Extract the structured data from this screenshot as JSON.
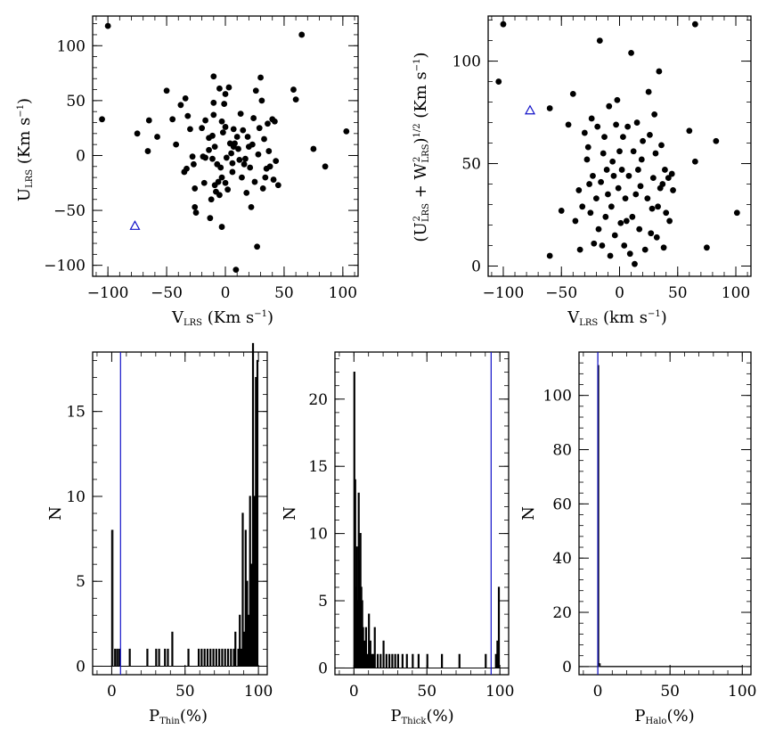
{
  "colors": {
    "ink": "#000000",
    "highlight": "#1010c8"
  },
  "chart_data": [
    {
      "id": "scatter-u-v",
      "type": "scatter",
      "xlabel": "V",
      "xlabel_sub": "LRS",
      "xlabel_units": " (Km s",
      "ylabel": "U",
      "ylabel_sub": "LRS",
      "ylabel_units": " (Km s",
      "exponent": "−1",
      "close_paren": ")",
      "xlim": [
        -113,
        113
      ],
      "ylim": [
        -110,
        127
      ],
      "xticks": [
        -100,
        -50,
        0,
        50,
        100
      ],
      "yticks": [
        -100,
        -50,
        0,
        50,
        100
      ],
      "xtick_labels": [
        "−100",
        "−50",
        "0",
        "50",
        "100"
      ],
      "ytick_labels": [
        "−100",
        "−50",
        "0",
        "50",
        "100"
      ],
      "points": [
        [
          -100,
          118
        ],
        [
          -105,
          33
        ],
        [
          -75,
          20
        ],
        [
          -65,
          32
        ],
        [
          -66,
          4
        ],
        [
          -58,
          17
        ],
        [
          -50,
          59
        ],
        [
          -45,
          33
        ],
        [
          -42,
          10
        ],
        [
          -38,
          46
        ],
        [
          -34,
          52
        ],
        [
          -35,
          -15
        ],
        [
          -33,
          -12
        ],
        [
          -32,
          36
        ],
        [
          -30,
          24
        ],
        [
          -28,
          -1
        ],
        [
          -27,
          -8
        ],
        [
          -26,
          -30
        ],
        [
          -26,
          -47
        ],
        [
          -25,
          -52
        ],
        [
          -20,
          25
        ],
        [
          -19,
          -1
        ],
        [
          -18,
          -25
        ],
        [
          -17,
          32
        ],
        [
          -17,
          -2
        ],
        [
          -14,
          16
        ],
        [
          -14,
          5
        ],
        [
          -13,
          -57
        ],
        [
          -12,
          -40
        ],
        [
          -11,
          18
        ],
        [
          -11,
          -3
        ],
        [
          -10,
          72
        ],
        [
          -10,
          48
        ],
        [
          -10,
          37
        ],
        [
          -9,
          8
        ],
        [
          -9,
          -27
        ],
        [
          -8,
          -33
        ],
        [
          -7,
          -8
        ],
        [
          -6,
          -24
        ],
        [
          -5,
          -36
        ],
        [
          -5,
          61
        ],
        [
          -4,
          -11
        ],
        [
          -3,
          31
        ],
        [
          -3,
          -20
        ],
        [
          -3,
          -65
        ],
        [
          -2,
          21
        ],
        [
          -1,
          47
        ],
        [
          0,
          56
        ],
        [
          0,
          26
        ],
        [
          0,
          -25
        ],
        [
          1,
          -2
        ],
        [
          2,
          -31
        ],
        [
          3,
          62
        ],
        [
          4,
          11
        ],
        [
          5,
          2
        ],
        [
          6,
          -15
        ],
        [
          6,
          -7
        ],
        [
          7,
          8
        ],
        [
          7,
          24
        ],
        [
          8,
          11
        ],
        [
          9,
          -104
        ],
        [
          10,
          17
        ],
        [
          11,
          6
        ],
        [
          12,
          -4
        ],
        [
          13,
          38
        ],
        [
          14,
          -20
        ],
        [
          15,
          23
        ],
        [
          16,
          -8
        ],
        [
          17,
          -3
        ],
        [
          18,
          -34
        ],
        [
          19,
          17
        ],
        [
          20,
          8
        ],
        [
          21,
          -11
        ],
        [
          22,
          -47
        ],
        [
          23,
          10
        ],
        [
          24,
          34
        ],
        [
          25,
          -24
        ],
        [
          26,
          59
        ],
        [
          27,
          -83
        ],
        [
          28,
          1
        ],
        [
          29,
          25
        ],
        [
          30,
          71
        ],
        [
          31,
          50
        ],
        [
          32,
          -30
        ],
        [
          33,
          15
        ],
        [
          34,
          -20
        ],
        [
          35,
          -12
        ],
        [
          36,
          29
        ],
        [
          37,
          4
        ],
        [
          38,
          -10
        ],
        [
          40,
          33
        ],
        [
          41,
          -22
        ],
        [
          42,
          31
        ],
        [
          43,
          -5
        ],
        [
          45,
          -27
        ],
        [
          58,
          60
        ],
        [
          60,
          51
        ],
        [
          65,
          110
        ],
        [
          75,
          6
        ],
        [
          85,
          -10
        ],
        [
          103,
          22
        ]
      ],
      "highlight_point": [
        -77,
        -64
      ]
    },
    {
      "id": "scatter-uw-v",
      "type": "scatter",
      "xlabel": "V",
      "xlabel_sub": "LRS",
      "xlabel_units": " (km s",
      "ylabel_prefix": "(U",
      "ylabel_plus": " + W",
      "ylabel_sup2": "2",
      "ylabel_sub": "LRS",
      "ylabel_close": ")",
      "ylabel_exp_half": "1/2",
      "ylabel_units": " (Km s",
      "exponent": "−1",
      "close_paren": ")",
      "xlim": [
        -113,
        113
      ],
      "ylim": [
        -5,
        122
      ],
      "xticks": [
        -100,
        -50,
        0,
        50,
        100
      ],
      "yticks": [
        0,
        50,
        100
      ],
      "xtick_labels": [
        "−100",
        "−50",
        "0",
        "50",
        "100"
      ],
      "ytick_labels": [
        "0",
        "50",
        "100"
      ],
      "points": [
        [
          -100,
          118
        ],
        [
          -104,
          90
        ],
        [
          -60,
          77
        ],
        [
          -60,
          5
        ],
        [
          -50,
          27
        ],
        [
          -44,
          69
        ],
        [
          -40,
          84
        ],
        [
          -38,
          22
        ],
        [
          -35,
          37
        ],
        [
          -34,
          8
        ],
        [
          -32,
          29
        ],
        [
          -30,
          65
        ],
        [
          -28,
          52
        ],
        [
          -27,
          58
        ],
        [
          -26,
          40
        ],
        [
          -25,
          26
        ],
        [
          -24,
          72
        ],
        [
          -23,
          44
        ],
        [
          -22,
          11
        ],
        [
          -20,
          33
        ],
        [
          -19,
          68
        ],
        [
          -18,
          18
        ],
        [
          -17,
          110
        ],
        [
          -16,
          41
        ],
        [
          -15,
          10
        ],
        [
          -14,
          55
        ],
        [
          -13,
          63
        ],
        [
          -12,
          24
        ],
        [
          -11,
          47
        ],
        [
          -10,
          35
        ],
        [
          -9,
          78
        ],
        [
          -8,
          5
        ],
        [
          -7,
          29
        ],
        [
          -6,
          51
        ],
        [
          -5,
          44
        ],
        [
          -4,
          15
        ],
        [
          -3,
          69
        ],
        [
          -2,
          81
        ],
        [
          -1,
          38
        ],
        [
          0,
          56
        ],
        [
          1,
          21
        ],
        [
          2,
          47
        ],
        [
          3,
          63
        ],
        [
          4,
          10
        ],
        [
          5,
          33
        ],
        [
          6,
          22
        ],
        [
          7,
          68
        ],
        [
          8,
          44
        ],
        [
          9,
          6
        ],
        [
          10,
          104
        ],
        [
          11,
          24
        ],
        [
          12,
          56
        ],
        [
          13,
          1
        ],
        [
          14,
          35
        ],
        [
          15,
          70
        ],
        [
          16,
          47
        ],
        [
          17,
          18
        ],
        [
          18,
          39
        ],
        [
          19,
          52
        ],
        [
          20,
          61
        ],
        [
          22,
          8
        ],
        [
          24,
          33
        ],
        [
          25,
          85
        ],
        [
          26,
          64
        ],
        [
          27,
          16
        ],
        [
          28,
          28
        ],
        [
          29,
          43
        ],
        [
          30,
          74
        ],
        [
          31,
          55
        ],
        [
          32,
          14
        ],
        [
          33,
          29
        ],
        [
          34,
          95
        ],
        [
          35,
          38
        ],
        [
          36,
          59
        ],
        [
          37,
          40
        ],
        [
          38,
          9
        ],
        [
          39,
          47
        ],
        [
          40,
          26
        ],
        [
          42,
          43
        ],
        [
          43,
          22
        ],
        [
          45,
          45
        ],
        [
          46,
          37
        ],
        [
          60,
          66
        ],
        [
          65,
          51
        ],
        [
          65,
          118
        ],
        [
          75,
          9
        ],
        [
          83,
          61
        ],
        [
          101,
          26
        ]
      ],
      "highlight_point": [
        -77,
        76
      ]
    },
    {
      "id": "hist-thin",
      "type": "bar",
      "xlabel": "P",
      "xlabel_sub": "Thin",
      "xlabel_units": "(%)",
      "ylabel": "N",
      "xlim": [
        -13,
        106
      ],
      "ylim": [
        -0.5,
        18.5
      ],
      "xticks": [
        0,
        50,
        100
      ],
      "yticks": [
        0,
        5,
        10,
        15
      ],
      "xtick_labels": [
        "0",
        "50",
        "100"
      ],
      "ytick_labels": [
        "0",
        "5",
        "10",
        "15"
      ],
      "bins": [
        [
          0,
          0.8,
          8
        ],
        [
          2,
          2.6,
          1
        ],
        [
          3.5,
          4.1,
          1
        ],
        [
          5,
          5.6,
          1
        ],
        [
          12,
          12.6,
          1
        ],
        [
          24,
          24.6,
          1
        ],
        [
          30,
          30.6,
          1
        ],
        [
          32,
          32.6,
          1
        ],
        [
          36,
          36.6,
          1
        ],
        [
          38,
          38.6,
          1
        ],
        [
          41,
          41.6,
          2
        ],
        [
          52,
          52.6,
          1
        ],
        [
          59,
          59.6,
          1
        ],
        [
          61,
          61.6,
          1
        ],
        [
          63,
          63.6,
          1
        ],
        [
          65,
          65.6,
          1
        ],
        [
          67,
          67.6,
          1
        ],
        [
          69,
          69.6,
          1
        ],
        [
          71,
          71.6,
          1
        ],
        [
          73,
          73.6,
          1
        ],
        [
          75,
          75.6,
          1
        ],
        [
          77,
          77.6,
          1
        ],
        [
          79,
          79.6,
          1
        ],
        [
          81,
          81.6,
          1
        ],
        [
          83,
          83.6,
          1
        ],
        [
          84,
          84.6,
          2
        ],
        [
          86,
          86.6,
          1
        ],
        [
          87,
          87.6,
          3
        ],
        [
          88,
          88.6,
          1
        ],
        [
          89,
          89.6,
          9
        ],
        [
          90,
          90.6,
          2
        ],
        [
          91,
          91.6,
          8
        ],
        [
          92,
          92.6,
          5
        ],
        [
          93,
          93.6,
          3
        ],
        [
          94,
          94.6,
          10
        ],
        [
          95,
          95.6,
          6
        ],
        [
          96,
          96.6,
          19
        ],
        [
          97,
          97.6,
          10
        ],
        [
          98,
          98.6,
          17
        ],
        [
          99,
          99.6,
          18
        ]
      ],
      "highlight_x": 6
    },
    {
      "id": "hist-thick",
      "type": "bar",
      "xlabel": "P",
      "xlabel_sub": "Thick",
      "xlabel_units": "(%)",
      "ylabel": "N",
      "xlim": [
        -13,
        106
      ],
      "ylim": [
        -0.5,
        23.5
      ],
      "xticks": [
        0,
        50,
        100
      ],
      "yticks": [
        0,
        5,
        10,
        15,
        20
      ],
      "xtick_labels": [
        "0",
        "50",
        "100"
      ],
      "ytick_labels": [
        "0",
        "5",
        "10",
        "15",
        "20"
      ],
      "bins": [
        [
          0,
          0.6,
          22
        ],
        [
          0.6,
          1.2,
          14
        ],
        [
          1.2,
          1.8,
          6
        ],
        [
          1.8,
          2.4,
          9
        ],
        [
          2.4,
          3,
          5
        ],
        [
          3,
          3.6,
          13
        ],
        [
          3.6,
          4.2,
          8
        ],
        [
          4.2,
          4.8,
          10
        ],
        [
          4.8,
          5.4,
          6
        ],
        [
          5.4,
          6,
          5
        ],
        [
          6,
          6.6,
          3
        ],
        [
          7,
          7.6,
          2
        ],
        [
          8,
          8.6,
          3
        ],
        [
          9,
          9.6,
          1
        ],
        [
          10,
          10.6,
          4
        ],
        [
          11,
          11.6,
          2
        ],
        [
          12,
          12.6,
          1
        ],
        [
          13,
          13.6,
          1
        ],
        [
          14,
          14.6,
          3
        ],
        [
          16,
          16.6,
          1
        ],
        [
          18,
          18.6,
          1
        ],
        [
          20,
          20.6,
          2
        ],
        [
          22,
          22.6,
          1
        ],
        [
          24,
          24.6,
          1
        ],
        [
          26,
          26.6,
          1
        ],
        [
          28,
          28.6,
          1
        ],
        [
          30,
          30.6,
          1
        ],
        [
          33,
          33.6,
          1
        ],
        [
          36,
          36.6,
          1
        ],
        [
          40,
          40.6,
          1
        ],
        [
          44,
          44.6,
          1
        ],
        [
          50,
          50.6,
          1
        ],
        [
          60,
          60.6,
          1
        ],
        [
          72,
          72.6,
          1
        ],
        [
          90,
          90.6,
          1
        ],
        [
          97,
          97.6,
          1
        ],
        [
          98,
          98.6,
          2
        ],
        [
          99,
          99.6,
          6
        ]
      ],
      "highlight_x": 94
    },
    {
      "id": "hist-halo",
      "type": "bar",
      "xlabel": "P",
      "xlabel_sub": "Halo",
      "xlabel_units": "(%)",
      "ylabel": "N",
      "xlim": [
        -13,
        106
      ],
      "ylim": [
        -3,
        116
      ],
      "xticks": [
        0,
        50,
        100
      ],
      "yticks": [
        0,
        20,
        40,
        60,
        80,
        100
      ],
      "xtick_labels": [
        "0",
        "50",
        "100"
      ],
      "ytick_labels": [
        "0",
        "20",
        "40",
        "60",
        "80",
        "100"
      ],
      "bins": [
        [
          0,
          0.6,
          111
        ],
        [
          0.6,
          1.6,
          1
        ],
        [
          1.6,
          100,
          0
        ]
      ],
      "highlight_x": 0
    }
  ]
}
